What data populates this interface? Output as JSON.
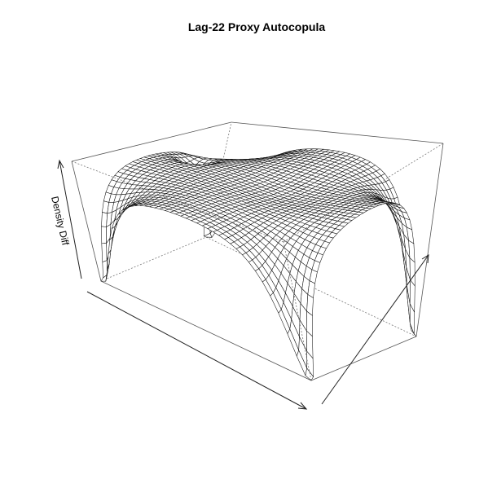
{
  "chart_data": {
    "type": "surface",
    "title": "Lag-22 Proxy Autocopula",
    "xlabel": "",
    "ylabel": "",
    "zlabel": "Density Diff",
    "x_range": [
      0,
      1
    ],
    "y_range": [
      0,
      1
    ],
    "grid_n": 41,
    "surface": {
      "description": "wireframe perspective surface; near-flat plateau with sharp downward spikes at all four corners and a small dip near the center of the far edge",
      "plateau_value": 0.0,
      "corner_spike_min": -1.0
    },
    "axis_ticks": false
  }
}
